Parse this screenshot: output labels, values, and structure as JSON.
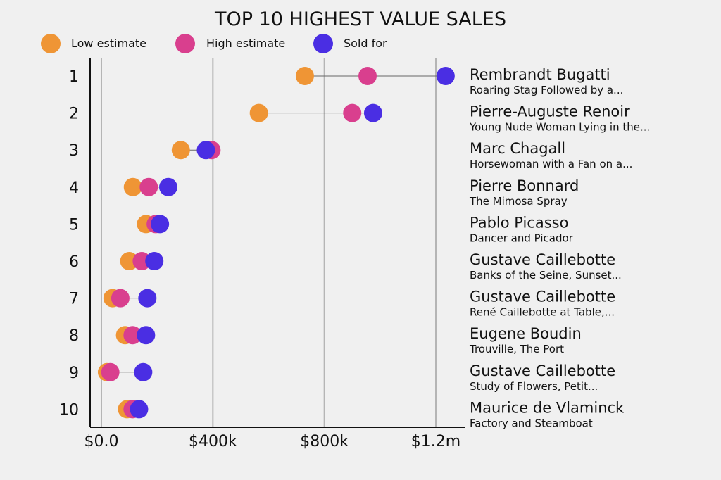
{
  "chart_data": {
    "type": "dumbbell",
    "title": "TOP 10 HIGHEST VALUE SALES",
    "xlim": [
      0,
      1250000
    ],
    "x_ticks": [
      {
        "value": 0,
        "label": "$0.0"
      },
      {
        "value": 400000,
        "label": "$400k"
      },
      {
        "value": 800000,
        "label": "$800k"
      },
      {
        "value": 1200000,
        "label": "$1.2m"
      }
    ],
    "legend": [
      {
        "key": "low",
        "label": "Low estimate",
        "color": "#ef9535"
      },
      {
        "key": "high",
        "label": "High estimate",
        "color": "#d93f8e"
      },
      {
        "key": "sold",
        "label": "Sold for",
        "color": "#4a2ee3"
      }
    ],
    "rows": [
      {
        "rank": "1",
        "artist": "Rembrandt Bugatti",
        "work": "Roaring Stag Followed by a...",
        "low": 730000,
        "high": 955000,
        "sold": 1235000
      },
      {
        "rank": "2",
        "artist": "Pierre-Auguste Renoir",
        "work": "Young Nude Woman Lying in the...",
        "low": 565000,
        "high": 900000,
        "sold": 975000
      },
      {
        "rank": "3",
        "artist": "Marc Chagall",
        "work": "Horsewoman with a Fan on a...",
        "low": 285000,
        "high": 395000,
        "sold": 375000
      },
      {
        "rank": "4",
        "artist": "Pierre Bonnard",
        "work": "The Mimosa Spray",
        "low": 113000,
        "high": 170000,
        "sold": 240000
      },
      {
        "rank": "5",
        "artist": "Pablo Picasso",
        "work": "Dancer and Picador",
        "low": 160000,
        "high": 195000,
        "sold": 210000
      },
      {
        "rank": "6",
        "artist": "Gustave Caillebotte",
        "work": "Banks of the Seine, Sunset...",
        "low": 100000,
        "high": 145000,
        "sold": 190000
      },
      {
        "rank": "7",
        "artist": "Gustave Caillebotte",
        "work": "René Caillebotte at Table,...",
        "low": 40000,
        "high": 68000,
        "sold": 165000
      },
      {
        "rank": "8",
        "artist": "Eugene Boudin",
        "work": "Trouville, The Port",
        "low": 85000,
        "high": 112000,
        "sold": 160000
      },
      {
        "rank": "9",
        "artist": "Gustave Caillebotte",
        "work": "Study of Flowers, Petit...",
        "low": 20000,
        "high": 32000,
        "sold": 150000
      },
      {
        "rank": "10",
        "artist": "Maurice de Vlaminck",
        "work": "Factory and Steamboat",
        "low": 92000,
        "high": 112000,
        "sold": 135000
      }
    ]
  }
}
